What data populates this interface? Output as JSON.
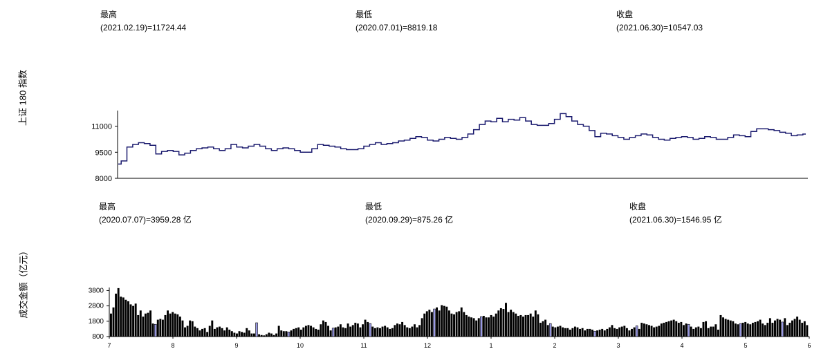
{
  "price_panel": {
    "ylabel": "上证 180 指数",
    "high": {
      "label": "最高",
      "value": "(2021.02.19)=11724.44"
    },
    "low": {
      "label": "最低",
      "value": "(2020.07.01)=8819.18"
    },
    "close": {
      "label": "收盘",
      "value": "(2021.06.30)=10547.03"
    }
  },
  "volume_panel": {
    "ylabel": "成交金额（亿元）",
    "high": {
      "label": "最高",
      "value": "(2020.07.07)=3959.28 亿"
    },
    "low": {
      "label": "最低",
      "value": "(2020.09.29)=875.26 亿"
    },
    "close": {
      "label": "收盘",
      "value": "(2021.06.30)=1546.95 亿"
    }
  },
  "colors": {
    "line": "#1a1a6e",
    "bar": "#000000",
    "bar_highlight": "#9a9ae6"
  },
  "chart_data": [
    {
      "type": "line",
      "ylabel": "上证 180 指数",
      "y_ticks": [
        8000,
        9500,
        11000
      ],
      "ylim": [
        8000,
        11900
      ],
      "x_ticks": [
        "7",
        "8",
        "9",
        "10",
        "11",
        "12",
        "1",
        "2",
        "3",
        "4",
        "5",
        "6"
      ],
      "series": [
        {
          "values": [
            8819,
            9000,
            9800,
            9950,
            10050,
            10000,
            9900,
            9400,
            9550,
            9600,
            9550,
            9350,
            9450,
            9600,
            9700,
            9750,
            9800,
            9700,
            9600,
            9700,
            9950,
            9800,
            9750,
            9850,
            9950,
            9850,
            9700,
            9600,
            9700,
            9750,
            9700,
            9600,
            9500,
            9500,
            9700,
            9950,
            9900,
            9850,
            9800,
            9700,
            9650,
            9650,
            9700,
            9850,
            9950,
            10050,
            9950,
            10000,
            10050,
            10150,
            10200,
            10300,
            10400,
            10350,
            10200,
            10150,
            10250,
            10350,
            10300,
            10250,
            10350,
            10550,
            10800,
            11100,
            11300,
            11250,
            11450,
            11250,
            11400,
            11350,
            11500,
            11300,
            11100,
            11050,
            11050,
            11150,
            11400,
            11724,
            11550,
            11300,
            11100,
            11000,
            10750,
            10400,
            10600,
            10550,
            10450,
            10350,
            10250,
            10350,
            10450,
            10550,
            10500,
            10350,
            10250,
            10200,
            10300,
            10350,
            10400,
            10350,
            10250,
            10300,
            10400,
            10350,
            10250,
            10250,
            10350,
            10500,
            10450,
            10400,
            10700,
            10850,
            10850,
            10800,
            10750,
            10650,
            10600,
            10450,
            10500,
            10547
          ]
        }
      ]
    },
    {
      "type": "bar",
      "ylabel": "成交金额（亿元）",
      "y_ticks": [
        800,
        1800,
        2800,
        3800
      ],
      "ylim": [
        800,
        4000
      ],
      "x_ticks": [
        "7",
        "8",
        "9",
        "10",
        "11",
        "12",
        "1",
        "2",
        "3",
        "4",
        "5",
        "6"
      ],
      "series": [
        {
          "values": [
            2300,
            2700,
            3600,
            3959,
            3400,
            3350,
            3200,
            3100,
            2900,
            2800,
            2950,
            2200,
            2500,
            2100,
            2300,
            2350,
            2500,
            1650,
            1600,
            1900,
            1950,
            1900,
            2200,
            2500,
            2300,
            2400,
            2300,
            2250,
            2100,
            1850,
            1400,
            1500,
            1850,
            1800,
            1450,
            1350,
            1200,
            1300,
            1350,
            1100,
            1500,
            1850,
            1300,
            1400,
            1450,
            1350,
            1200,
            1400,
            1250,
            1150,
            1050,
            1000,
            1150,
            1100,
            1050,
            1350,
            1200,
            1000,
            1000,
            1700,
            950,
            900,
            875,
            950,
            1050,
            1000,
            900,
            1000,
            1500,
            1200,
            1150,
            1150,
            1100,
            1200,
            1300,
            1350,
            1400,
            1250,
            1400,
            1500,
            1550,
            1500,
            1400,
            1300,
            1250,
            1600,
            1850,
            1750,
            1500,
            1200,
            1350,
            1400,
            1450,
            1600,
            1400,
            1350,
            1650,
            1450,
            1550,
            1700,
            1650,
            1400,
            1600,
            1900,
            1750,
            1650,
            1450,
            1350,
            1400,
            1350,
            1450,
            1500,
            1400,
            1300,
            1350,
            1550,
            1650,
            1600,
            1750,
            1550,
            1400,
            1350,
            1450,
            1600,
            1400,
            1550,
            2000,
            2300,
            2450,
            2550,
            2400,
            2600,
            2700,
            2500,
            2850,
            2800,
            2750,
            2500,
            2300,
            2250,
            2400,
            2450,
            2700,
            2400,
            2200,
            2100,
            2050,
            2000,
            1850,
            2000,
            2100,
            2150,
            2050,
            2050,
            2200,
            2100,
            2300,
            2500,
            2650,
            2600,
            3000,
            2400,
            2550,
            2400,
            2300,
            2150,
            2200,
            2100,
            2200,
            2200,
            2300,
            2100,
            2500,
            2250,
            1700,
            1800,
            1900,
            1550,
            1650,
            1450,
            1400,
            1450,
            1500,
            1400,
            1350,
            1350,
            1250,
            1350,
            1450,
            1400,
            1300,
            1350,
            1200,
            1300,
            1300,
            1250,
            1150,
            1200,
            1250,
            1300,
            1200,
            1300,
            1400,
            1550,
            1350,
            1300,
            1400,
            1450,
            1500,
            1350,
            1200,
            1300,
            1400,
            1500,
            1300,
            1700,
            1650,
            1600,
            1550,
            1500,
            1400,
            1450,
            1500,
            1650,
            1700,
            1750,
            1800,
            1850,
            1900,
            1800,
            1700,
            1750,
            1550,
            1650,
            1600,
            1450,
            1300,
            1400,
            1450,
            1350,
            1750,
            1800,
            1350,
            1450,
            1450,
            1600,
            1250,
            2200,
            2050,
            1950,
            1900,
            1850,
            1800,
            1650,
            1600,
            1650,
            1700,
            1750,
            1650,
            1600,
            1700,
            1750,
            1800,
            1900,
            1650,
            1550,
            1700,
            2000,
            1700,
            1850,
            1950,
            1900,
            1750,
            2000,
            1550,
            1700,
            1850,
            1950,
            2100,
            1900,
            1700,
            1800,
            1547
          ],
          "highlight_indices": [
            18,
            59,
            72,
            90,
            105,
            131,
            150,
            178,
            196,
            213,
            234,
            255,
            272,
            293
          ]
        }
      ]
    }
  ]
}
